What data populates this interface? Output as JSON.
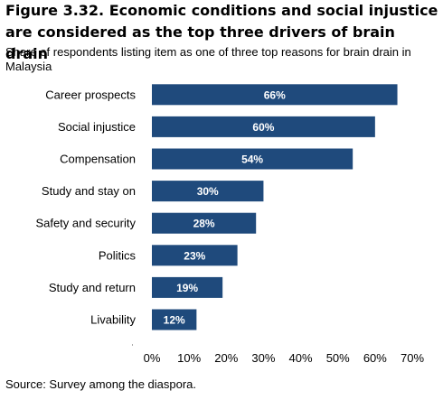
{
  "figure": {
    "title": "Figure 3.32. Economic conditions and social injustice are considered as the top three drivers of brain drain",
    "subtitle": "Share of respondents listing item as one of three top reasons for brain drain in Malaysia",
    "source": "Source: Survey among the diaspora."
  },
  "chart_data": {
    "type": "bar",
    "orientation": "horizontal",
    "title": "Figure 3.32. Economic conditions and social injustice are considered as the top three drivers of brain drain",
    "subtitle": "Share of respondents listing item as one of three top reasons for brain drain in Malaysia",
    "categories": [
      "Career prospects",
      "Social injustice",
      "Compensation",
      "Study and stay on",
      "Safety and security",
      "Politics",
      "Study and return",
      "Livability"
    ],
    "values": [
      66,
      60,
      54,
      30,
      28,
      23,
      19,
      12
    ],
    "data_labels": [
      "66%",
      "60%",
      "54%",
      "30%",
      "28%",
      "23%",
      "19%",
      "12%"
    ],
    "xlim": [
      0,
      70
    ],
    "xticks": [
      0,
      10,
      20,
      30,
      40,
      50,
      60,
      70
    ],
    "xtick_labels": [
      "0%",
      "10%",
      "20%",
      "30%",
      "40%",
      "50%",
      "60%",
      "70%"
    ],
    "grid": false,
    "legend": "none",
    "bar_color": "#1f4a7c"
  }
}
